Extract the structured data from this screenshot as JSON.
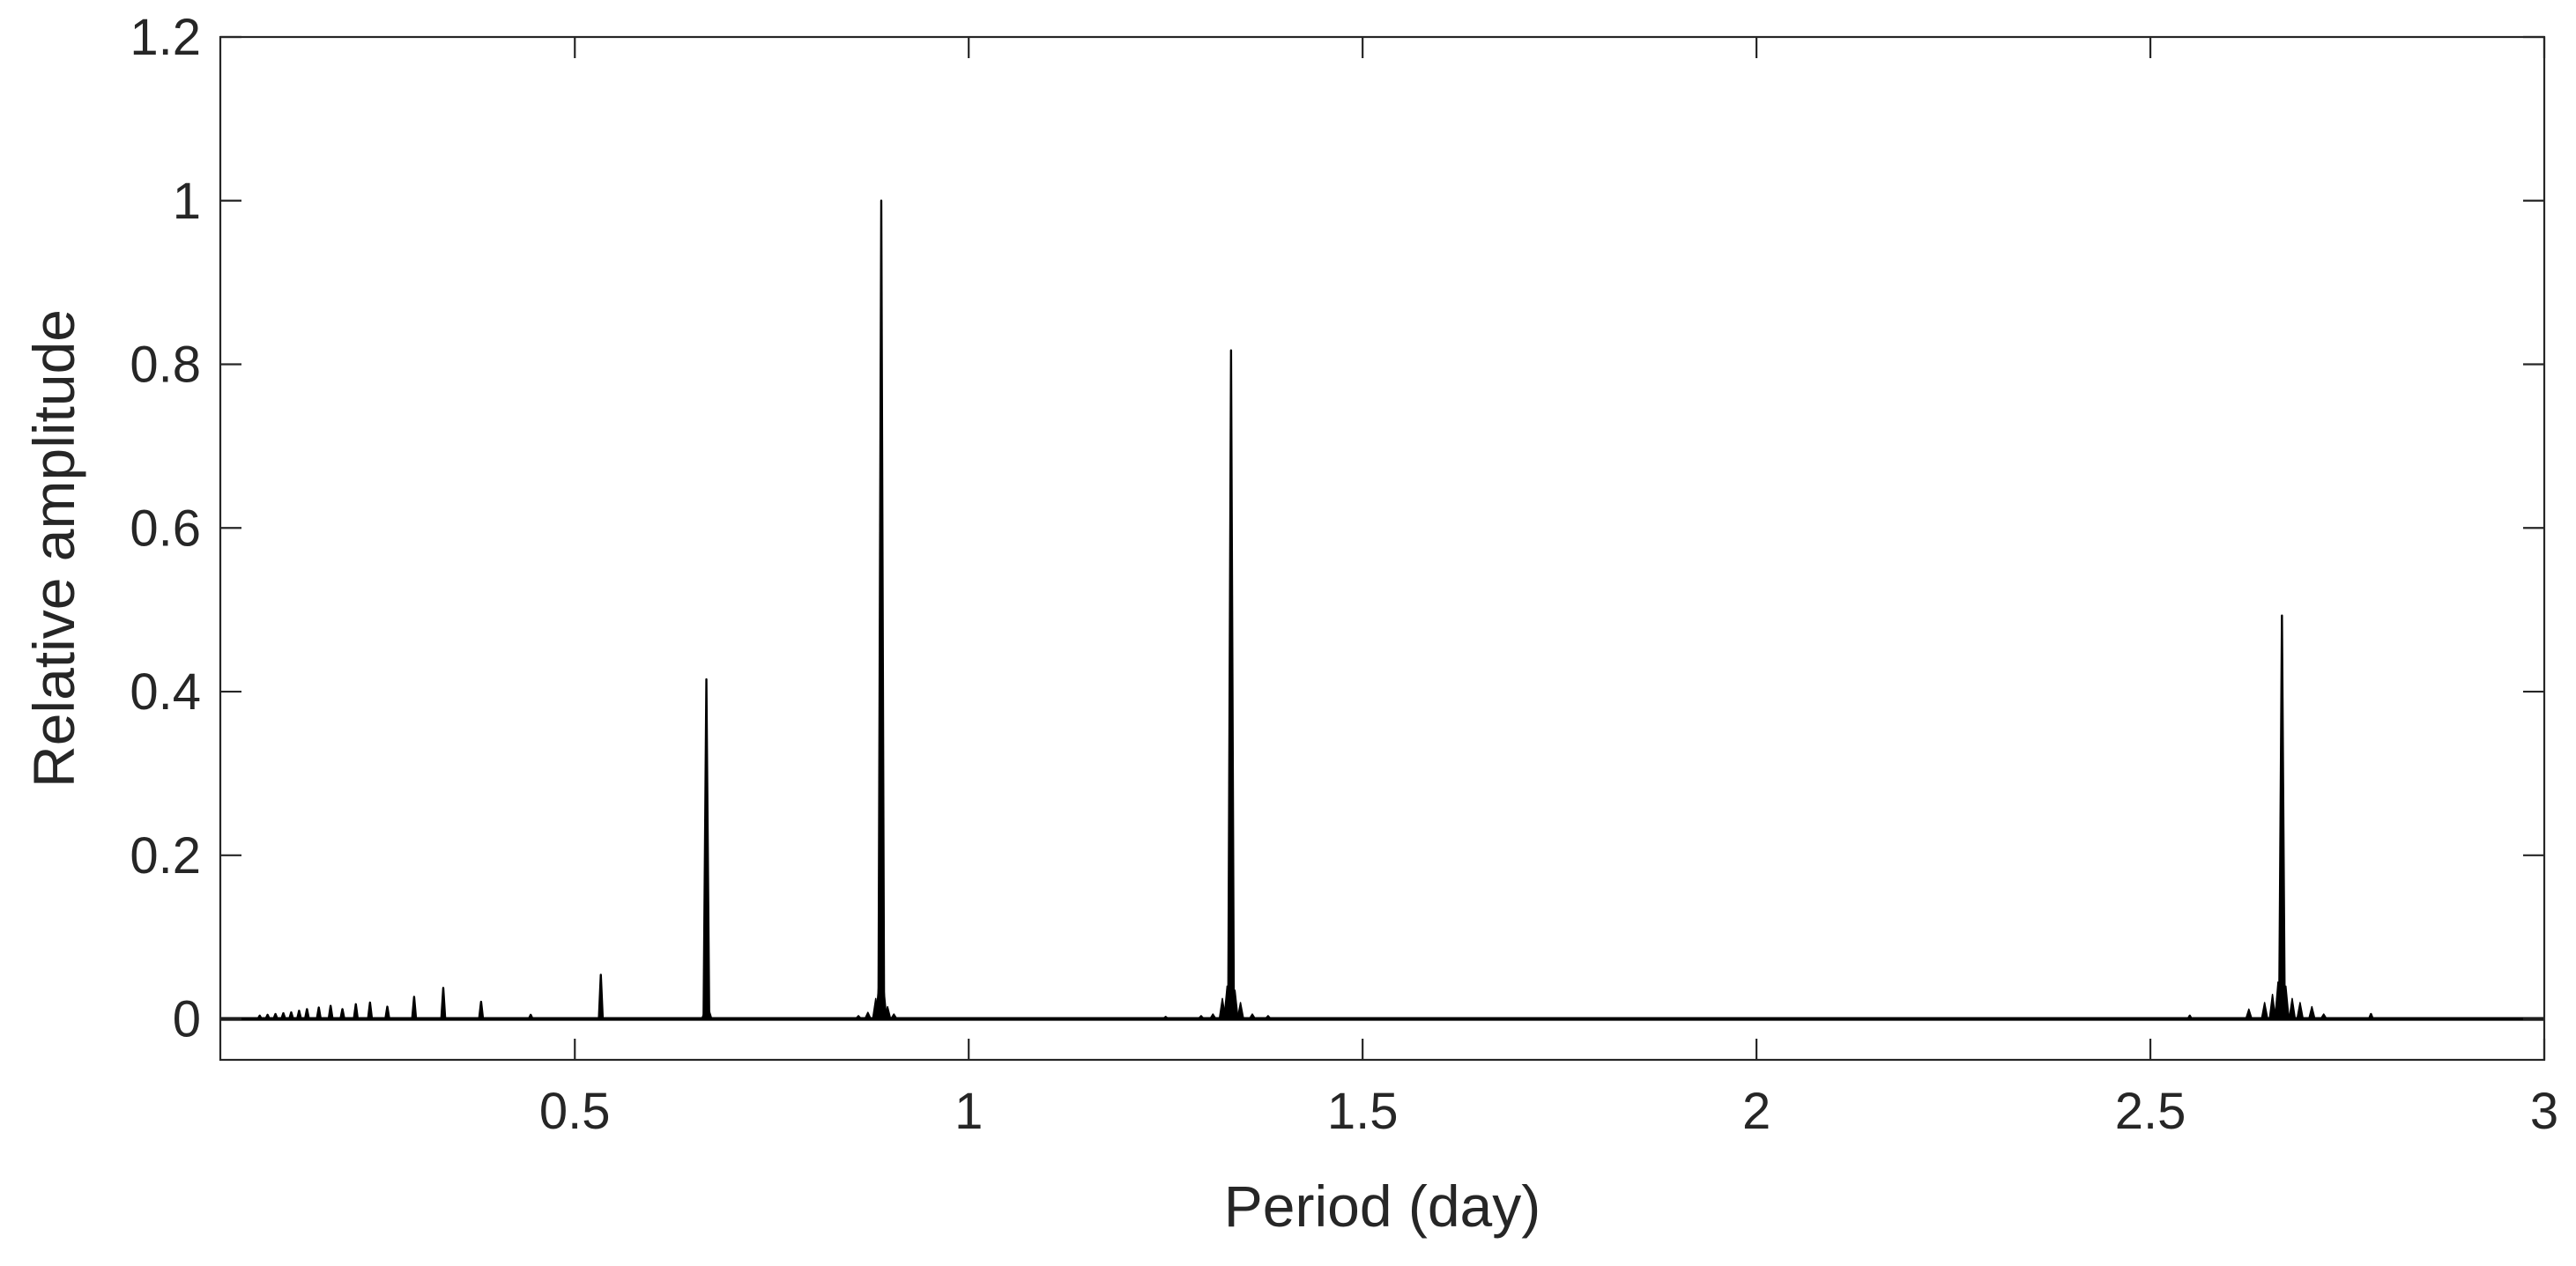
{
  "chart_data": {
    "type": "line",
    "title": "",
    "xlabel": "Period (day)",
    "ylabel": "Relative  amplitude",
    "xlim": [
      0.05,
      3.0
    ],
    "ylim": [
      -0.05,
      1.2
    ],
    "grid": false,
    "box": true,
    "x_ticks": [
      0.5,
      1,
      1.5,
      2,
      2.5,
      3
    ],
    "x_tick_labels": [
      "0.5",
      "1",
      "1.5",
      "2",
      "2.5",
      "3"
    ],
    "y_ticks": [
      0,
      0.2,
      0.4,
      0.6,
      0.8,
      1,
      1.2
    ],
    "y_tick_labels": [
      "0",
      "0.2",
      "0.4",
      "0.6",
      "0.8",
      "1",
      "1.2"
    ],
    "line_color": "#000000",
    "baseline": 0,
    "series": [
      {
        "peaks": [
          {
            "x": 0.1,
            "y": 0.004
          },
          {
            "x": 0.11,
            "y": 0.005
          },
          {
            "x": 0.12,
            "y": 0.006
          },
          {
            "x": 0.13,
            "y": 0.007
          },
          {
            "x": 0.14,
            "y": 0.008
          },
          {
            "x": 0.15,
            "y": 0.01
          },
          {
            "x": 0.16,
            "y": 0.012
          },
          {
            "x": 0.175,
            "y": 0.014
          },
          {
            "x": 0.19,
            "y": 0.016
          },
          {
            "x": 0.205,
            "y": 0.012
          },
          {
            "x": 0.222,
            "y": 0.018
          },
          {
            "x": 0.24,
            "y": 0.02
          },
          {
            "x": 0.262,
            "y": 0.015
          },
          {
            "x": 0.296,
            "y": 0.027
          },
          {
            "x": 0.333,
            "y": 0.038
          },
          {
            "x": 0.381,
            "y": 0.021
          },
          {
            "x": 0.444,
            "y": 0.005
          },
          {
            "x": 0.533,
            "y": 0.054
          },
          {
            "x": 0.667,
            "y": 0.415
          },
          {
            "x": 0.889,
            "y": 1.0
          },
          {
            "x": 1.333,
            "y": 0.817
          },
          {
            "x": 2.667,
            "y": 0.493
          },
          {
            "x": 2.55,
            "y": 0.004
          },
          {
            "x": 2.78,
            "y": 0.006
          }
        ],
        "side_lobes": [
          {
            "x": 0.665,
            "y": 0.01
          },
          {
            "x": 0.67,
            "y": 0.012
          },
          {
            "x": 0.86,
            "y": 0.004
          },
          {
            "x": 0.872,
            "y": 0.008
          },
          {
            "x": 0.882,
            "y": 0.025
          },
          {
            "x": 0.886,
            "y": 0.045
          },
          {
            "x": 0.892,
            "y": 0.04
          },
          {
            "x": 0.897,
            "y": 0.015
          },
          {
            "x": 0.905,
            "y": 0.006
          },
          {
            "x": 1.25,
            "y": 0.003
          },
          {
            "x": 1.295,
            "y": 0.004
          },
          {
            "x": 1.31,
            "y": 0.006
          },
          {
            "x": 1.322,
            "y": 0.025
          },
          {
            "x": 1.328,
            "y": 0.04
          },
          {
            "x": 1.338,
            "y": 0.035
          },
          {
            "x": 1.345,
            "y": 0.02
          },
          {
            "x": 1.36,
            "y": 0.006
          },
          {
            "x": 1.38,
            "y": 0.004
          },
          {
            "x": 2.625,
            "y": 0.012
          },
          {
            "x": 2.645,
            "y": 0.02
          },
          {
            "x": 2.655,
            "y": 0.03
          },
          {
            "x": 2.662,
            "y": 0.045
          },
          {
            "x": 2.672,
            "y": 0.04
          },
          {
            "x": 2.68,
            "y": 0.025
          },
          {
            "x": 2.69,
            "y": 0.02
          },
          {
            "x": 2.705,
            "y": 0.015
          },
          {
            "x": 2.72,
            "y": 0.006
          }
        ]
      }
    ]
  }
}
